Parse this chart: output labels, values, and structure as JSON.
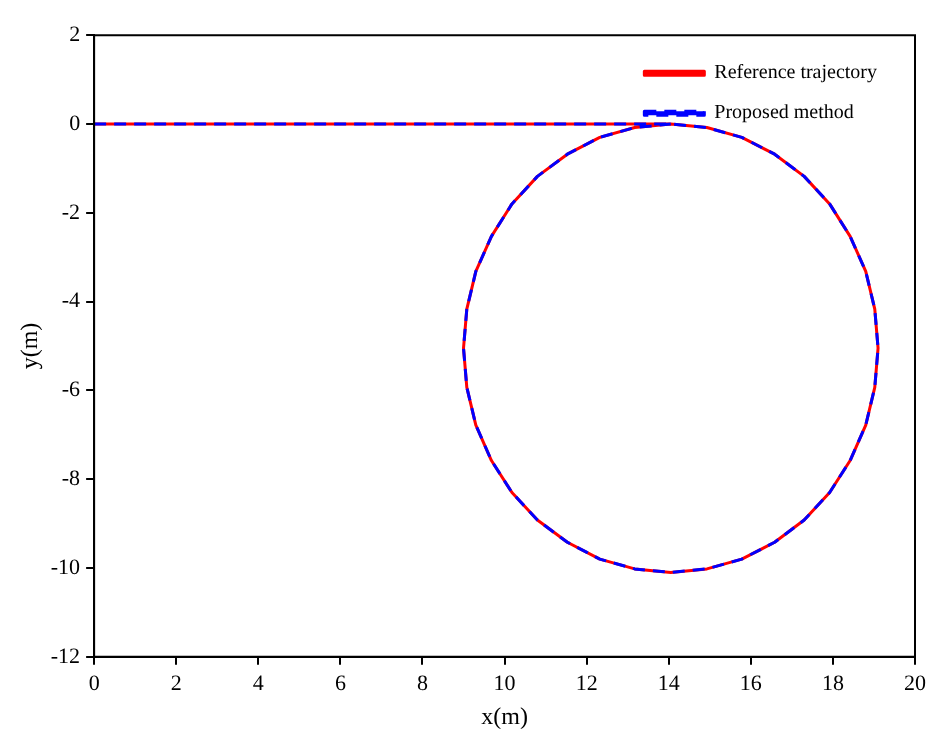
{
  "chart_data": {
    "type": "line",
    "xlabel": "x(m)",
    "ylabel": "y(m)",
    "xlim": [
      0,
      20
    ],
    "ylim": [
      -12,
      2
    ],
    "xticks": [
      0,
      2,
      4,
      6,
      8,
      10,
      12,
      14,
      16,
      18,
      20
    ],
    "yticks": [
      -12,
      -10,
      -8,
      -6,
      -4,
      -2,
      0,
      2
    ],
    "grid": false,
    "legend": "top right",
    "marker": "none",
    "series": [
      {
        "name": "Reference trajectory",
        "color": "#ff0000",
        "line_style": "solid",
        "x": [
          0,
          14.05,
          14.93,
          15.78,
          16.58,
          17.3,
          17.92,
          18.42,
          18.8,
          19.02,
          19.1,
          19.02,
          18.8,
          18.42,
          17.92,
          17.3,
          16.58,
          15.78,
          14.93,
          14.05,
          13.17,
          12.32,
          11.53,
          10.8,
          10.18,
          9.68,
          9.3,
          9.08,
          9.0,
          9.08,
          9.3,
          9.68,
          10.18,
          10.8,
          11.53,
          12.32,
          13.17,
          14.05
        ],
        "values": [
          0,
          0,
          -0.08,
          -0.3,
          -0.68,
          -1.18,
          -1.8,
          -2.53,
          -3.32,
          -4.17,
          -5.05,
          -5.93,
          -6.78,
          -7.58,
          -8.3,
          -8.92,
          -9.42,
          -9.8,
          -10.02,
          -10.1,
          -10.02,
          -9.8,
          -9.42,
          -8.92,
          -8.3,
          -7.58,
          -6.78,
          -5.93,
          -5.05,
          -4.17,
          -3.32,
          -2.53,
          -1.8,
          -1.18,
          -0.68,
          -0.3,
          -0.08,
          0
        ]
      },
      {
        "name": "Proposed method",
        "color": "#0000ff",
        "line_style": "dashed",
        "x": [
          0,
          14.05,
          14.93,
          15.78,
          16.58,
          17.3,
          17.92,
          18.42,
          18.8,
          19.02,
          19.1,
          19.02,
          18.8,
          18.42,
          17.92,
          17.3,
          16.58,
          15.78,
          14.93,
          14.05,
          13.17,
          12.32,
          11.53,
          10.8,
          10.18,
          9.68,
          9.3,
          9.08,
          9.0,
          9.08,
          9.3,
          9.68,
          10.18,
          10.8,
          11.53,
          12.32,
          13.17,
          14.05
        ],
        "values": [
          0,
          0,
          -0.08,
          -0.3,
          -0.68,
          -1.18,
          -1.8,
          -2.53,
          -3.32,
          -4.17,
          -5.05,
          -5.93,
          -6.78,
          -7.58,
          -8.3,
          -8.92,
          -9.42,
          -9.8,
          -10.02,
          -10.1,
          -10.02,
          -9.8,
          -9.42,
          -8.92,
          -8.3,
          -7.58,
          -6.78,
          -5.93,
          -5.05,
          -4.17,
          -3.32,
          -2.53,
          -1.8,
          -1.18,
          -0.68,
          -0.3,
          -0.08,
          0
        ]
      }
    ]
  }
}
